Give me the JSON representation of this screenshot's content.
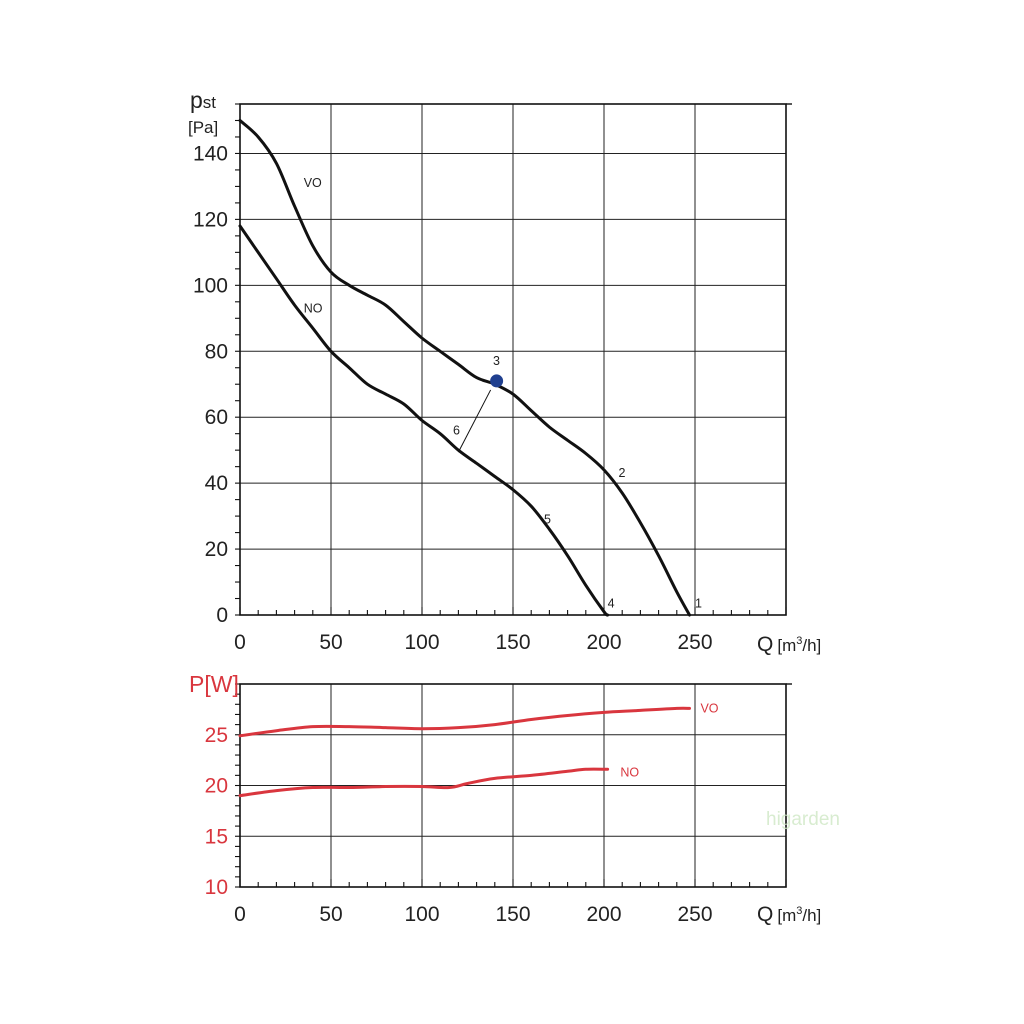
{
  "watermark": {
    "text": "higarden"
  },
  "chart_data": [
    {
      "type": "line",
      "xlabel": "Q",
      "xunit_pre": "[m",
      "xunit_sup": "3",
      "xunit_post": "/h]",
      "ylabel_main": "p",
      "ylabel_sub": "st",
      "yunit": "[Pa]",
      "xlim": [
        0,
        300
      ],
      "ylim": [
        0,
        155
      ],
      "xticks": [
        0,
        50,
        100,
        150,
        200,
        250
      ],
      "yticks": [
        0,
        20,
        40,
        60,
        80,
        100,
        120,
        140
      ],
      "grid": true,
      "line_color": "#111111",
      "series": [
        {
          "name": "VO",
          "points": [
            [
              0,
              150
            ],
            [
              10,
              145
            ],
            [
              20,
              137
            ],
            [
              30,
              124
            ],
            [
              40,
              112
            ],
            [
              50,
              104
            ],
            [
              60,
              100
            ],
            [
              70,
              97
            ],
            [
              80,
              94
            ],
            [
              90,
              89
            ],
            [
              100,
              84
            ],
            [
              110,
              80
            ],
            [
              120,
              76
            ],
            [
              130,
              72
            ],
            [
              140,
              70
            ],
            [
              150,
              67
            ],
            [
              160,
              62
            ],
            [
              170,
              57
            ],
            [
              180,
              53
            ],
            [
              190,
              49
            ],
            [
              200,
              44
            ],
            [
              210,
              37
            ],
            [
              220,
              28
            ],
            [
              230,
              18
            ],
            [
              240,
              7
            ],
            [
              247,
              0
            ]
          ]
        },
        {
          "name": "NO",
          "points": [
            [
              0,
              118
            ],
            [
              10,
              110
            ],
            [
              20,
              102
            ],
            [
              30,
              94
            ],
            [
              40,
              87
            ],
            [
              50,
              80
            ],
            [
              60,
              75
            ],
            [
              70,
              70
            ],
            [
              80,
              67
            ],
            [
              90,
              64
            ],
            [
              100,
              59
            ],
            [
              110,
              55
            ],
            [
              120,
              50
            ],
            [
              130,
              46
            ],
            [
              140,
              42
            ],
            [
              150,
              38
            ],
            [
              160,
              33
            ],
            [
              170,
              26
            ],
            [
              180,
              18
            ],
            [
              190,
              9
            ],
            [
              200,
              1
            ],
            [
              202,
              0
            ]
          ]
        }
      ],
      "point_labels": [
        {
          "text": "1",
          "x": 250,
          "y": 3.5
        },
        {
          "text": "2",
          "x": 208,
          "y": 43
        },
        {
          "text": "3",
          "x": 139,
          "y": 77
        },
        {
          "text": "4",
          "x": 202,
          "y": 3.5
        },
        {
          "text": "5",
          "x": 167,
          "y": 29
        },
        {
          "text": "6",
          "x": 117,
          "y": 56
        }
      ],
      "series_labels": [
        {
          "text": "VO",
          "x": 35,
          "y": 131
        },
        {
          "text": "NO",
          "x": 35,
          "y": 93
        }
      ],
      "operating_point": {
        "label": "3",
        "x": 141,
        "y": 71,
        "color": "#1f3f8f"
      },
      "system_line": {
        "label": "6",
        "from": [
          141,
          71
        ],
        "to": [
          120,
          50
        ]
      }
    },
    {
      "type": "line",
      "xlabel": "Q",
      "xunit_pre": "[m",
      "xunit_sup": "3",
      "xunit_post": "/h]",
      "ylabel": "P[W]",
      "xlim": [
        0,
        300
      ],
      "ylim": [
        10,
        30
      ],
      "xticks": [
        0,
        50,
        100,
        150,
        200,
        250
      ],
      "yticks": [
        10,
        15,
        20,
        25
      ],
      "grid": true,
      "line_color": "#d9363e",
      "series": [
        {
          "name": "VO",
          "points": [
            [
              0,
              24.9
            ],
            [
              20,
              25.4
            ],
            [
              40,
              25.8
            ],
            [
              60,
              25.8
            ],
            [
              80,
              25.7
            ],
            [
              100,
              25.6
            ],
            [
              120,
              25.7
            ],
            [
              140,
              26.0
            ],
            [
              160,
              26.5
            ],
            [
              180,
              26.9
            ],
            [
              200,
              27.2
            ],
            [
              220,
              27.4
            ],
            [
              240,
              27.6
            ],
            [
              247,
              27.6
            ]
          ]
        },
        {
          "name": "NO",
          "points": [
            [
              0,
              19.0
            ],
            [
              20,
              19.5
            ],
            [
              40,
              19.8
            ],
            [
              60,
              19.8
            ],
            [
              80,
              19.9
            ],
            [
              100,
              19.9
            ],
            [
              115,
              19.8
            ],
            [
              125,
              20.2
            ],
            [
              140,
              20.7
            ],
            [
              160,
              21.0
            ],
            [
              180,
              21.4
            ],
            [
              190,
              21.6
            ],
            [
              202,
              21.6
            ]
          ]
        }
      ],
      "series_labels": [
        {
          "text": "VO",
          "x": 253,
          "y": 27.6
        },
        {
          "text": "NO",
          "x": 209,
          "y": 21.3
        }
      ]
    }
  ]
}
